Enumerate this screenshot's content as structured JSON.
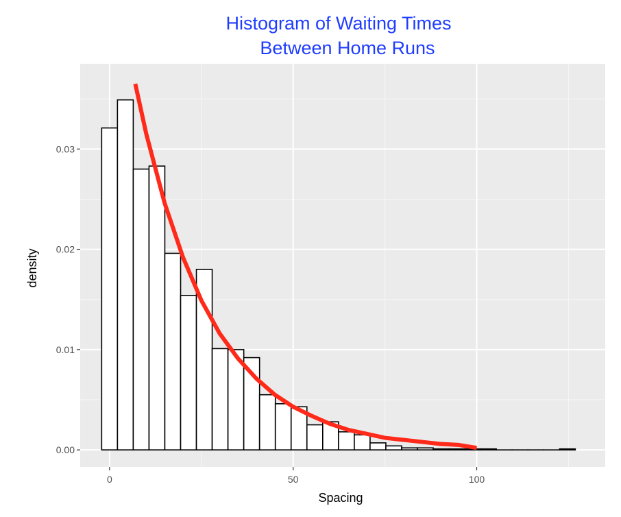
{
  "chart_data": {
    "type": "bar",
    "title_lines": [
      "Histogram of Waiting Times",
      "Between Home Runs"
    ],
    "xlabel": "Spacing",
    "ylabel": "density",
    "xlim": [
      -8,
      135
    ],
    "ylim": [
      -0.0017,
      0.0385
    ],
    "x_ticks": [
      0,
      50,
      100
    ],
    "x_tick_labels": [
      "0",
      "50",
      "100"
    ],
    "y_ticks": [
      0.0,
      0.01,
      0.02,
      0.03
    ],
    "y_tick_labels": [
      "0.00",
      "0.01",
      "0.02",
      "0.03"
    ],
    "grid": true,
    "bin_width": 4.3,
    "bins": [
      {
        "x0": -2.15,
        "x1": 2.15,
        "density": 0.0321
      },
      {
        "x0": 2.15,
        "x1": 6.45,
        "density": 0.0349
      },
      {
        "x0": 6.45,
        "x1": 10.75,
        "density": 0.028
      },
      {
        "x0": 10.75,
        "x1": 15.05,
        "density": 0.0283
      },
      {
        "x0": 15.05,
        "x1": 19.35,
        "density": 0.0196
      },
      {
        "x0": 19.35,
        "x1": 23.65,
        "density": 0.0154
      },
      {
        "x0": 23.65,
        "x1": 27.95,
        "density": 0.018
      },
      {
        "x0": 27.95,
        "x1": 32.25,
        "density": 0.0101
      },
      {
        "x0": 32.25,
        "x1": 36.55,
        "density": 0.01
      },
      {
        "x0": 36.55,
        "x1": 40.85,
        "density": 0.0092
      },
      {
        "x0": 40.85,
        "x1": 45.15,
        "density": 0.0055
      },
      {
        "x0": 45.15,
        "x1": 49.45,
        "density": 0.0046
      },
      {
        "x0": 49.45,
        "x1": 53.75,
        "density": 0.0043
      },
      {
        "x0": 53.75,
        "x1": 58.05,
        "density": 0.0025
      },
      {
        "x0": 58.05,
        "x1": 62.35,
        "density": 0.0028
      },
      {
        "x0": 62.35,
        "x1": 66.65,
        "density": 0.0018
      },
      {
        "x0": 66.65,
        "x1": 70.95,
        "density": 0.0015
      },
      {
        "x0": 70.95,
        "x1": 75.25,
        "density": 0.0007
      },
      {
        "x0": 75.25,
        "x1": 79.55,
        "density": 0.0004
      },
      {
        "x0": 79.55,
        "x1": 83.85,
        "density": 0.0002
      },
      {
        "x0": 83.85,
        "x1": 88.15,
        "density": 0.0002
      },
      {
        "x0": 88.15,
        "x1": 92.45,
        "density": 0.0001
      },
      {
        "x0": 92.45,
        "x1": 96.75,
        "density": 0.0001
      },
      {
        "x0": 96.75,
        "x1": 101.05,
        "density": 0.0001
      },
      {
        "x0": 101.05,
        "x1": 105.35,
        "density": 0.0001
      },
      {
        "x0": 105.35,
        "x1": 109.65,
        "density": 0.0
      },
      {
        "x0": 109.65,
        "x1": 113.95,
        "density": 0.0
      },
      {
        "x0": 113.95,
        "x1": 118.25,
        "density": 0.0
      },
      {
        "x0": 118.25,
        "x1": 122.55,
        "density": 0.0
      },
      {
        "x0": 122.55,
        "x1": 126.85,
        "density": 0.0001
      }
    ],
    "curve": {
      "x": [
        7,
        10,
        15,
        20,
        25,
        30,
        35,
        40,
        45,
        50,
        55,
        60,
        65,
        70,
        75,
        80,
        85,
        90,
        95,
        100
      ],
      "y": [
        0.0365,
        0.0315,
        0.0246,
        0.0192,
        0.0149,
        0.0116,
        0.0091,
        0.0071,
        0.0055,
        0.0043,
        0.0034,
        0.0026,
        0.002,
        0.0016,
        0.0012,
        0.001,
        0.0008,
        0.0006,
        0.0005,
        0.0002
      ]
    },
    "colors": {
      "panel": "#ebebeb",
      "grid_major": "#ffffff",
      "grid_minor": "#f7f7f7",
      "bar_fill": "#ffffff",
      "bar_stroke": "#000000",
      "curve": "#ff2a1a",
      "title": "#1f3dff",
      "tick_label": "#4d4d4d",
      "tick_mark": "#333333"
    }
  }
}
